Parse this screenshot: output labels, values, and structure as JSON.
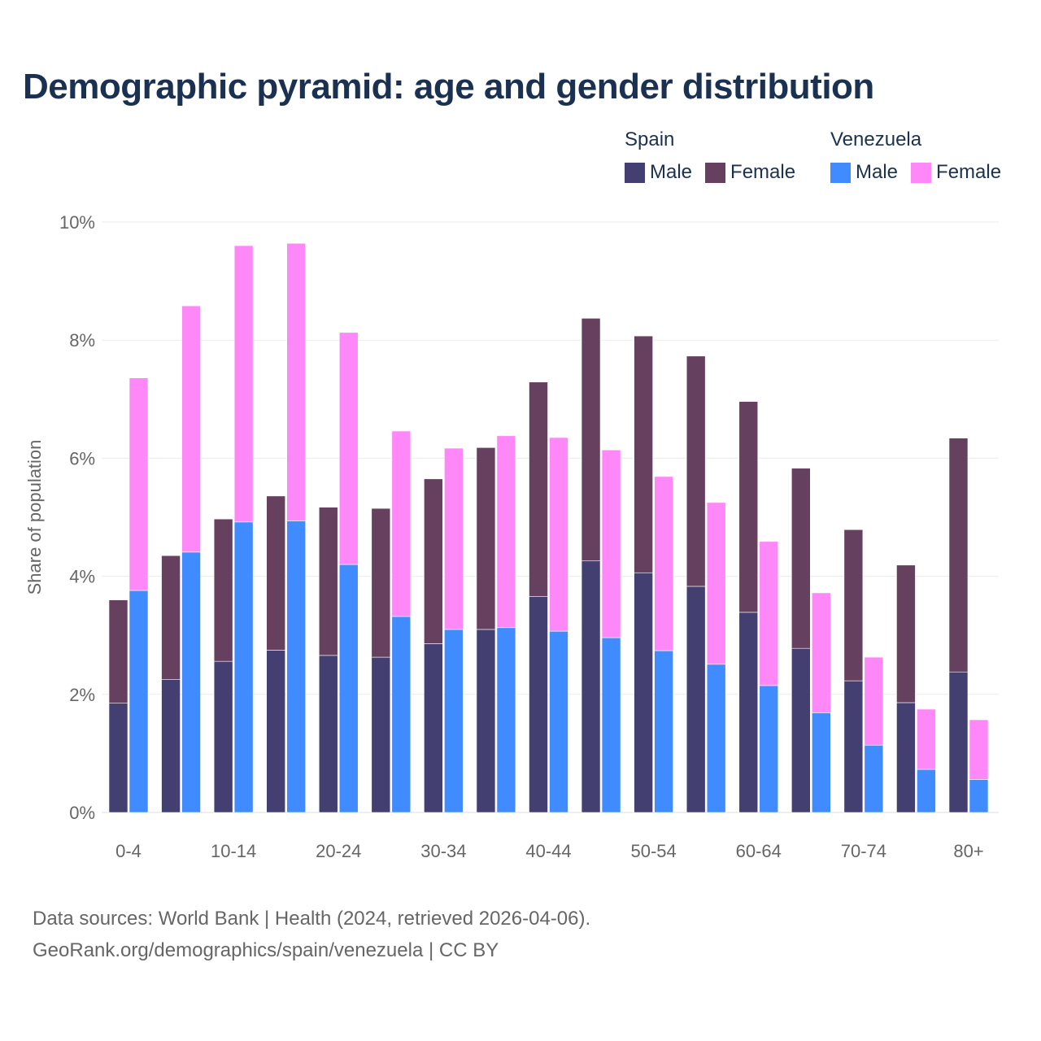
{
  "chart_data": {
    "type": "bar",
    "stacked": true,
    "title": "Demographic pyramid: age and gender distribution",
    "xlabel": "",
    "ylabel": "Share of population",
    "ylim": [
      0,
      10
    ],
    "yticks": [
      0,
      2,
      4,
      6,
      8,
      10
    ],
    "ytick_labels": [
      "0%",
      "2%",
      "4%",
      "6%",
      "8%",
      "10%"
    ],
    "grid": true,
    "legend_position": "top-right",
    "categories": [
      "0-4",
      "5-9",
      "10-14",
      "15-19",
      "20-24",
      "25-29",
      "30-34",
      "35-39",
      "40-44",
      "45-49",
      "50-54",
      "55-59",
      "60-64",
      "65-69",
      "70-74",
      "75-79",
      "80+"
    ],
    "visible_tick_labels": [
      "0-4",
      "10-14",
      "20-24",
      "30-34",
      "40-44",
      "50-54",
      "60-64",
      "70-74",
      "80+"
    ],
    "countries": [
      {
        "name": "Spain",
        "series": [
          {
            "name": "Male",
            "color": "#433f70",
            "values": [
              1.85,
              2.25,
              2.56,
              2.75,
              2.66,
              2.63,
              2.86,
              3.1,
              3.66,
              4.26,
              4.06,
              3.83,
              3.39,
              2.78,
              2.23,
              1.86,
              2.38
            ]
          },
          {
            "name": "Female",
            "color": "#66405f",
            "values": [
              1.75,
              2.1,
              2.41,
              2.61,
              2.51,
              2.52,
              2.79,
              3.08,
              3.63,
              4.11,
              4.01,
              3.9,
              3.57,
              3.05,
              2.56,
              2.33,
              3.96
            ]
          }
        ]
      },
      {
        "name": "Venezuela",
        "series": [
          {
            "name": "Male",
            "color": "#3f8bff",
            "values": [
              3.76,
              4.41,
              4.92,
              4.94,
              4.2,
              3.32,
              3.1,
              3.13,
              3.07,
              2.96,
              2.74,
              2.51,
              2.15,
              1.69,
              1.14,
              0.73,
              0.56
            ]
          },
          {
            "name": "Female",
            "color": "#ff88f8",
            "values": [
              3.6,
              4.17,
              4.68,
              4.7,
              3.93,
              3.14,
              3.07,
              3.25,
              3.28,
              3.18,
              2.95,
              2.74,
              2.44,
              2.03,
              1.49,
              1.02,
              1.01
            ]
          }
        ]
      }
    ]
  },
  "footer": {
    "source_line": "Data sources: World Bank | Health (2024, retrieved 2026-04-06).",
    "url_line": "GeoRank.org/demographics/spain/venezuela | CC BY"
  }
}
